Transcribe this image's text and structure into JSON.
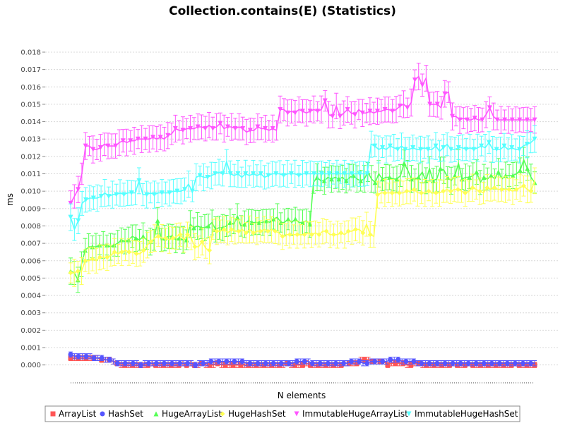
{
  "chart_data": {
    "type": "line",
    "title": "Collection.contains(E) (Statistics)",
    "xlabel": "N elements",
    "ylabel": "ms",
    "ylim": [
      -0.0005,
      0.0195
    ],
    "yticks": [
      "0.000",
      "0.001",
      "0.002",
      "0.003",
      "0.004",
      "0.005",
      "0.006",
      "0.007",
      "0.008",
      "0.009",
      "0.010",
      "0.011",
      "0.012",
      "0.013",
      "0.014",
      "0.015",
      "0.016",
      "0.017",
      "0.018"
    ],
    "grid": true,
    "error_bars": true,
    "legend_position": "bottom",
    "series": [
      {
        "name": "ArrayList",
        "color": "#ff5555",
        "marker": "square",
        "values": [
          0.0004,
          0.0004,
          0.0004,
          0.0004,
          0.0004,
          0.0004,
          0.0004,
          0.0004,
          0.0003,
          0.0003,
          0.0003,
          0.0002,
          0.0001,
          0.0,
          0.0,
          0.0,
          0.0,
          0.0,
          0.0,
          0.0,
          0.0,
          0.0001,
          0.0,
          0.0,
          0.0,
          0.0,
          0.0,
          0.0,
          0.0,
          0.0001,
          0.0,
          0.0001,
          0.0,
          0.0,
          0.0001,
          0.0,
          0.0,
          0.0,
          0.0001,
          0.0,
          0.0,
          0.0,
          0.0,
          0.0,
          0.0,
          0.0,
          0.0,
          0.0,
          0.0,
          0.0,
          0.0,
          0.0,
          0.0,
          0.0,
          0.0,
          0.0,
          0.0001,
          0.0,
          0.0,
          0.0,
          0.0,
          0.0001,
          0.0,
          0.0,
          0.0,
          0.0,
          0.0,
          0.0,
          0.0,
          0.0,
          0.0,
          0.0001,
          0.0001,
          0.0001,
          0.0001,
          0.0003,
          0.0003,
          0.0003,
          0.0002,
          0.0002,
          0.0002,
          0.0002,
          0.0,
          0.0001,
          0.0001,
          0.0001,
          0.0001,
          0.0,
          0.0,
          0.0001,
          0.0001,
          0.0,
          0.0,
          0.0,
          0.0,
          0.0,
          0.0,
          0.0,
          0.0,
          0.0001,
          0.0,
          0.0,
          0.0,
          0.0001,
          0.0,
          0.0,
          0.0,
          0.0,
          0.0,
          0.0,
          0.0,
          0.0,
          0.0,
          0.0,
          0.0,
          0.0001,
          0.0,
          0.0,
          0.0,
          0.0,
          0.0
        ]
      },
      {
        "name": "HashSet",
        "color": "#5555ff",
        "marker": "circle",
        "values": [
          0.0006,
          0.0005,
          0.0005,
          0.0005,
          0.0005,
          0.0005,
          0.0004,
          0.0004,
          0.0004,
          0.0003,
          0.0003,
          0.0002,
          0.0001,
          0.0001,
          0.0001,
          0.0001,
          0.0001,
          0.0001,
          0.0,
          0.0001,
          0.0001,
          0.0001,
          0.0001,
          0.0001,
          0.0001,
          0.0001,
          0.0001,
          0.0001,
          0.0001,
          0.0001,
          0.0001,
          0.0001,
          0.0,
          0.0001,
          0.0001,
          0.0001,
          0.0002,
          0.0002,
          0.0002,
          0.0002,
          0.0002,
          0.0002,
          0.0002,
          0.0002,
          0.0002,
          0.0001,
          0.0001,
          0.0001,
          0.0001,
          0.0001,
          0.0001,
          0.0001,
          0.0001,
          0.0001,
          0.0001,
          0.0001,
          0.0001,
          0.0001,
          0.0002,
          0.0002,
          0.0002,
          0.0002,
          0.0001,
          0.0001,
          0.0001,
          0.0001,
          0.0001,
          0.0001,
          0.0001,
          0.0001,
          0.0001,
          0.0001,
          0.0002,
          0.0002,
          0.0002,
          0.0001,
          0.0001,
          0.0002,
          0.0002,
          0.0002,
          0.0002,
          0.0002,
          0.0003,
          0.0003,
          0.0003,
          0.0002,
          0.0002,
          0.0002,
          0.0002,
          0.0001,
          0.0001,
          0.0001,
          0.0001,
          0.0001,
          0.0001,
          0.0001,
          0.0001,
          0.0001,
          0.0001,
          0.0001,
          0.0001,
          0.0001,
          0.0001,
          0.0001,
          0.0001,
          0.0001,
          0.0001,
          0.0001,
          0.0001,
          0.0001,
          0.0001,
          0.0001,
          0.0001,
          0.0001,
          0.0001,
          0.0001,
          0.0001,
          0.0001,
          0.0001,
          0.0001
        ]
      },
      {
        "name": "HugeArrayList",
        "color": "#55ff55",
        "marker": "triangle",
        "values": [
          0.0054,
          0.0053,
          0.0049,
          0.0058,
          0.0066,
          0.0068,
          0.0068,
          0.0068,
          0.0069,
          0.0069,
          0.0069,
          0.0068,
          0.0069,
          0.007,
          0.0072,
          0.0071,
          0.0072,
          0.0074,
          0.0073,
          0.0072,
          0.0074,
          0.0072,
          0.0071,
          0.0072,
          0.0083,
          0.0072,
          0.0073,
          0.0074,
          0.0074,
          0.0072,
          0.0073,
          0.0072,
          0.0072,
          0.0081,
          0.0079,
          0.008,
          0.0079,
          0.0079,
          0.008,
          0.0082,
          0.0078,
          0.0079,
          0.0079,
          0.008,
          0.0082,
          0.0081,
          0.0085,
          0.008,
          0.0081,
          0.0083,
          0.0082,
          0.0082,
          0.0082,
          0.0082,
          0.0083,
          0.0082,
          0.0084,
          0.0085,
          0.0082,
          0.0082,
          0.0084,
          0.0082,
          0.0084,
          0.0082,
          0.0082,
          0.0083,
          0.0081,
          0.0105,
          0.0108,
          0.0106,
          0.0106,
          0.0108,
          0.0107,
          0.0108,
          0.0107,
          0.0108,
          0.0106,
          0.0108,
          0.0109,
          0.0107,
          0.0106,
          0.0107,
          0.0111,
          0.0107,
          0.0105,
          0.011,
          0.0107,
          0.0108,
          0.0108,
          0.0107,
          0.0107,
          0.0109,
          0.0116,
          0.0112,
          0.0107,
          0.0107,
          0.0108,
          0.0111,
          0.0106,
          0.0113,
          0.0106,
          0.0107,
          0.0113,
          0.0112,
          0.0108,
          0.0106,
          0.0109,
          0.0116,
          0.0107,
          0.0108,
          0.0108,
          0.0109,
          0.0111,
          0.0105,
          0.0108,
          0.0107,
          0.0109,
          0.0107,
          0.0111,
          0.0107,
          0.0109,
          0.0109,
          0.0109,
          0.011,
          0.0112,
          0.0118,
          0.0113,
          0.0108,
          0.0105
        ]
      },
      {
        "name": "HugeHashSet",
        "color": "#ffff55",
        "marker": "diamond",
        "values": [
          0.0053,
          0.0053,
          0.0054,
          0.0054,
          0.006,
          0.006,
          0.0061,
          0.006,
          0.0062,
          0.0062,
          0.0062,
          0.0063,
          0.0065,
          0.0064,
          0.0065,
          0.0066,
          0.0065,
          0.0065,
          0.0064,
          0.0064,
          0.0066,
          0.0069,
          0.0071,
          0.0073,
          0.0074,
          0.0073,
          0.0073,
          0.0072,
          0.0073,
          0.0074,
          0.0075,
          0.0072,
          0.0075,
          0.0073,
          0.0068,
          0.0068,
          0.0071,
          0.0067,
          0.0066,
          0.0078,
          0.0077,
          0.0077,
          0.0078,
          0.0076,
          0.0078,
          0.0077,
          0.0077,
          0.0078,
          0.0076,
          0.0078,
          0.0076,
          0.0077,
          0.0077,
          0.0078,
          0.0077,
          0.0078,
          0.0077,
          0.0076,
          0.0074,
          0.0075,
          0.0075,
          0.0075,
          0.0075,
          0.0075,
          0.0075,
          0.0076,
          0.0075,
          0.0076,
          0.0075,
          0.0077,
          0.0077,
          0.0075,
          0.0075,
          0.0075,
          0.0076,
          0.0075,
          0.0077,
          0.0077,
          0.0078,
          0.0078,
          0.0076,
          0.0081,
          0.0075,
          0.0074,
          0.0098,
          0.0099,
          0.0099,
          0.0099,
          0.0099,
          0.0099,
          0.0099,
          0.0099,
          0.01,
          0.01,
          0.0101,
          0.0099,
          0.0099,
          0.0099,
          0.01,
          0.0099,
          0.0099,
          0.0099,
          0.01,
          0.0101,
          0.01,
          0.0101,
          0.0101,
          0.01,
          0.0099,
          0.01,
          0.0102,
          0.0101,
          0.01,
          0.0099,
          0.0102,
          0.0101,
          0.0102,
          0.0101,
          0.0101,
          0.0101,
          0.0101,
          0.01,
          0.0101,
          0.0102,
          0.0103,
          0.0101,
          0.01,
          0.0106
        ]
      },
      {
        "name": "ImmutableHugeArrayList",
        "color": "#ff55ff",
        "marker": "triangle-down",
        "values": [
          0.0093,
          0.0097,
          0.0101,
          0.011,
          0.0126,
          0.0126,
          0.0124,
          0.0124,
          0.0125,
          0.0127,
          0.0126,
          0.0126,
          0.0126,
          0.0128,
          0.0129,
          0.0128,
          0.0129,
          0.0129,
          0.013,
          0.013,
          0.013,
          0.013,
          0.0131,
          0.013,
          0.0131,
          0.013,
          0.0132,
          0.0133,
          0.0136,
          0.0135,
          0.0135,
          0.0136,
          0.0136,
          0.0136,
          0.0137,
          0.0137,
          0.0136,
          0.0138,
          0.0136,
          0.0137,
          0.0139,
          0.0136,
          0.0137,
          0.0137,
          0.0136,
          0.0137,
          0.0136,
          0.0134,
          0.0135,
          0.0135,
          0.0137,
          0.0136,
          0.0136,
          0.0135,
          0.0136,
          0.0135,
          0.0147,
          0.0147,
          0.0145,
          0.0146,
          0.0145,
          0.0147,
          0.0146,
          0.0145,
          0.0146,
          0.0147,
          0.0146,
          0.0147,
          0.0152,
          0.0144,
          0.0143,
          0.0149,
          0.0143,
          0.0145,
          0.0147,
          0.0145,
          0.0144,
          0.0147,
          0.0145,
          0.0145,
          0.0146,
          0.0145,
          0.0146,
          0.0146,
          0.0147,
          0.0147,
          0.0146,
          0.0147,
          0.0149,
          0.015,
          0.0148,
          0.0151,
          0.0164,
          0.0166,
          0.0161,
          0.0165,
          0.015,
          0.015,
          0.015,
          0.0148,
          0.0156,
          0.0157,
          0.0143,
          0.0143,
          0.0141,
          0.0142,
          0.0141,
          0.0141,
          0.0142,
          0.0141,
          0.0141,
          0.0144,
          0.0148,
          0.0143,
          0.0141,
          0.0141,
          0.0141,
          0.0141,
          0.0141,
          0.0141,
          0.0141,
          0.0141,
          0.0141,
          0.0141,
          0.0141
        ]
      },
      {
        "name": "ImmutableHugeHashSet",
        "color": "#55ffff",
        "marker": "triangle-down",
        "values": [
          0.0085,
          0.0078,
          0.0083,
          0.0093,
          0.0095,
          0.0096,
          0.0096,
          0.0096,
          0.0097,
          0.0099,
          0.0097,
          0.0098,
          0.0098,
          0.0099,
          0.0098,
          0.0099,
          0.0099,
          0.0099,
          0.0106,
          0.0098,
          0.0098,
          0.0099,
          0.0098,
          0.0099,
          0.0099,
          0.0099,
          0.0099,
          0.01,
          0.01,
          0.01,
          0.0101,
          0.0104,
          0.01,
          0.0108,
          0.0109,
          0.0108,
          0.0108,
          0.0109,
          0.011,
          0.0111,
          0.011,
          0.0117,
          0.011,
          0.0109,
          0.011,
          0.0108,
          0.011,
          0.0109,
          0.011,
          0.0109,
          0.011,
          0.0108,
          0.0109,
          0.011,
          0.011,
          0.011,
          0.0109,
          0.011,
          0.011,
          0.011,
          0.0109,
          0.011,
          0.011,
          0.011,
          0.011,
          0.011,
          0.011,
          0.011,
          0.011,
          0.011,
          0.011,
          0.011,
          0.011,
          0.011,
          0.011,
          0.011,
          0.011,
          0.011,
          0.011,
          0.0127,
          0.0126,
          0.0124,
          0.0125,
          0.0124,
          0.0126,
          0.0125,
          0.0124,
          0.0126,
          0.0124,
          0.0124,
          0.0125,
          0.0124,
          0.0124,
          0.0125,
          0.0124,
          0.0124,
          0.0126,
          0.0123,
          0.0125,
          0.0127,
          0.0124,
          0.0124,
          0.0125,
          0.0125,
          0.0124,
          0.0125,
          0.0124,
          0.0125,
          0.0126,
          0.0125,
          0.0128,
          0.0124,
          0.0124,
          0.0124,
          0.0126,
          0.0124,
          0.0125,
          0.0124,
          0.0124,
          0.0126,
          0.0127,
          0.0128,
          0.013
        ]
      }
    ]
  },
  "colors": {
    "background": "#ffffff",
    "plot_background": "#ffffff",
    "gridline": "#d8d8d8",
    "axis": "#888888"
  }
}
